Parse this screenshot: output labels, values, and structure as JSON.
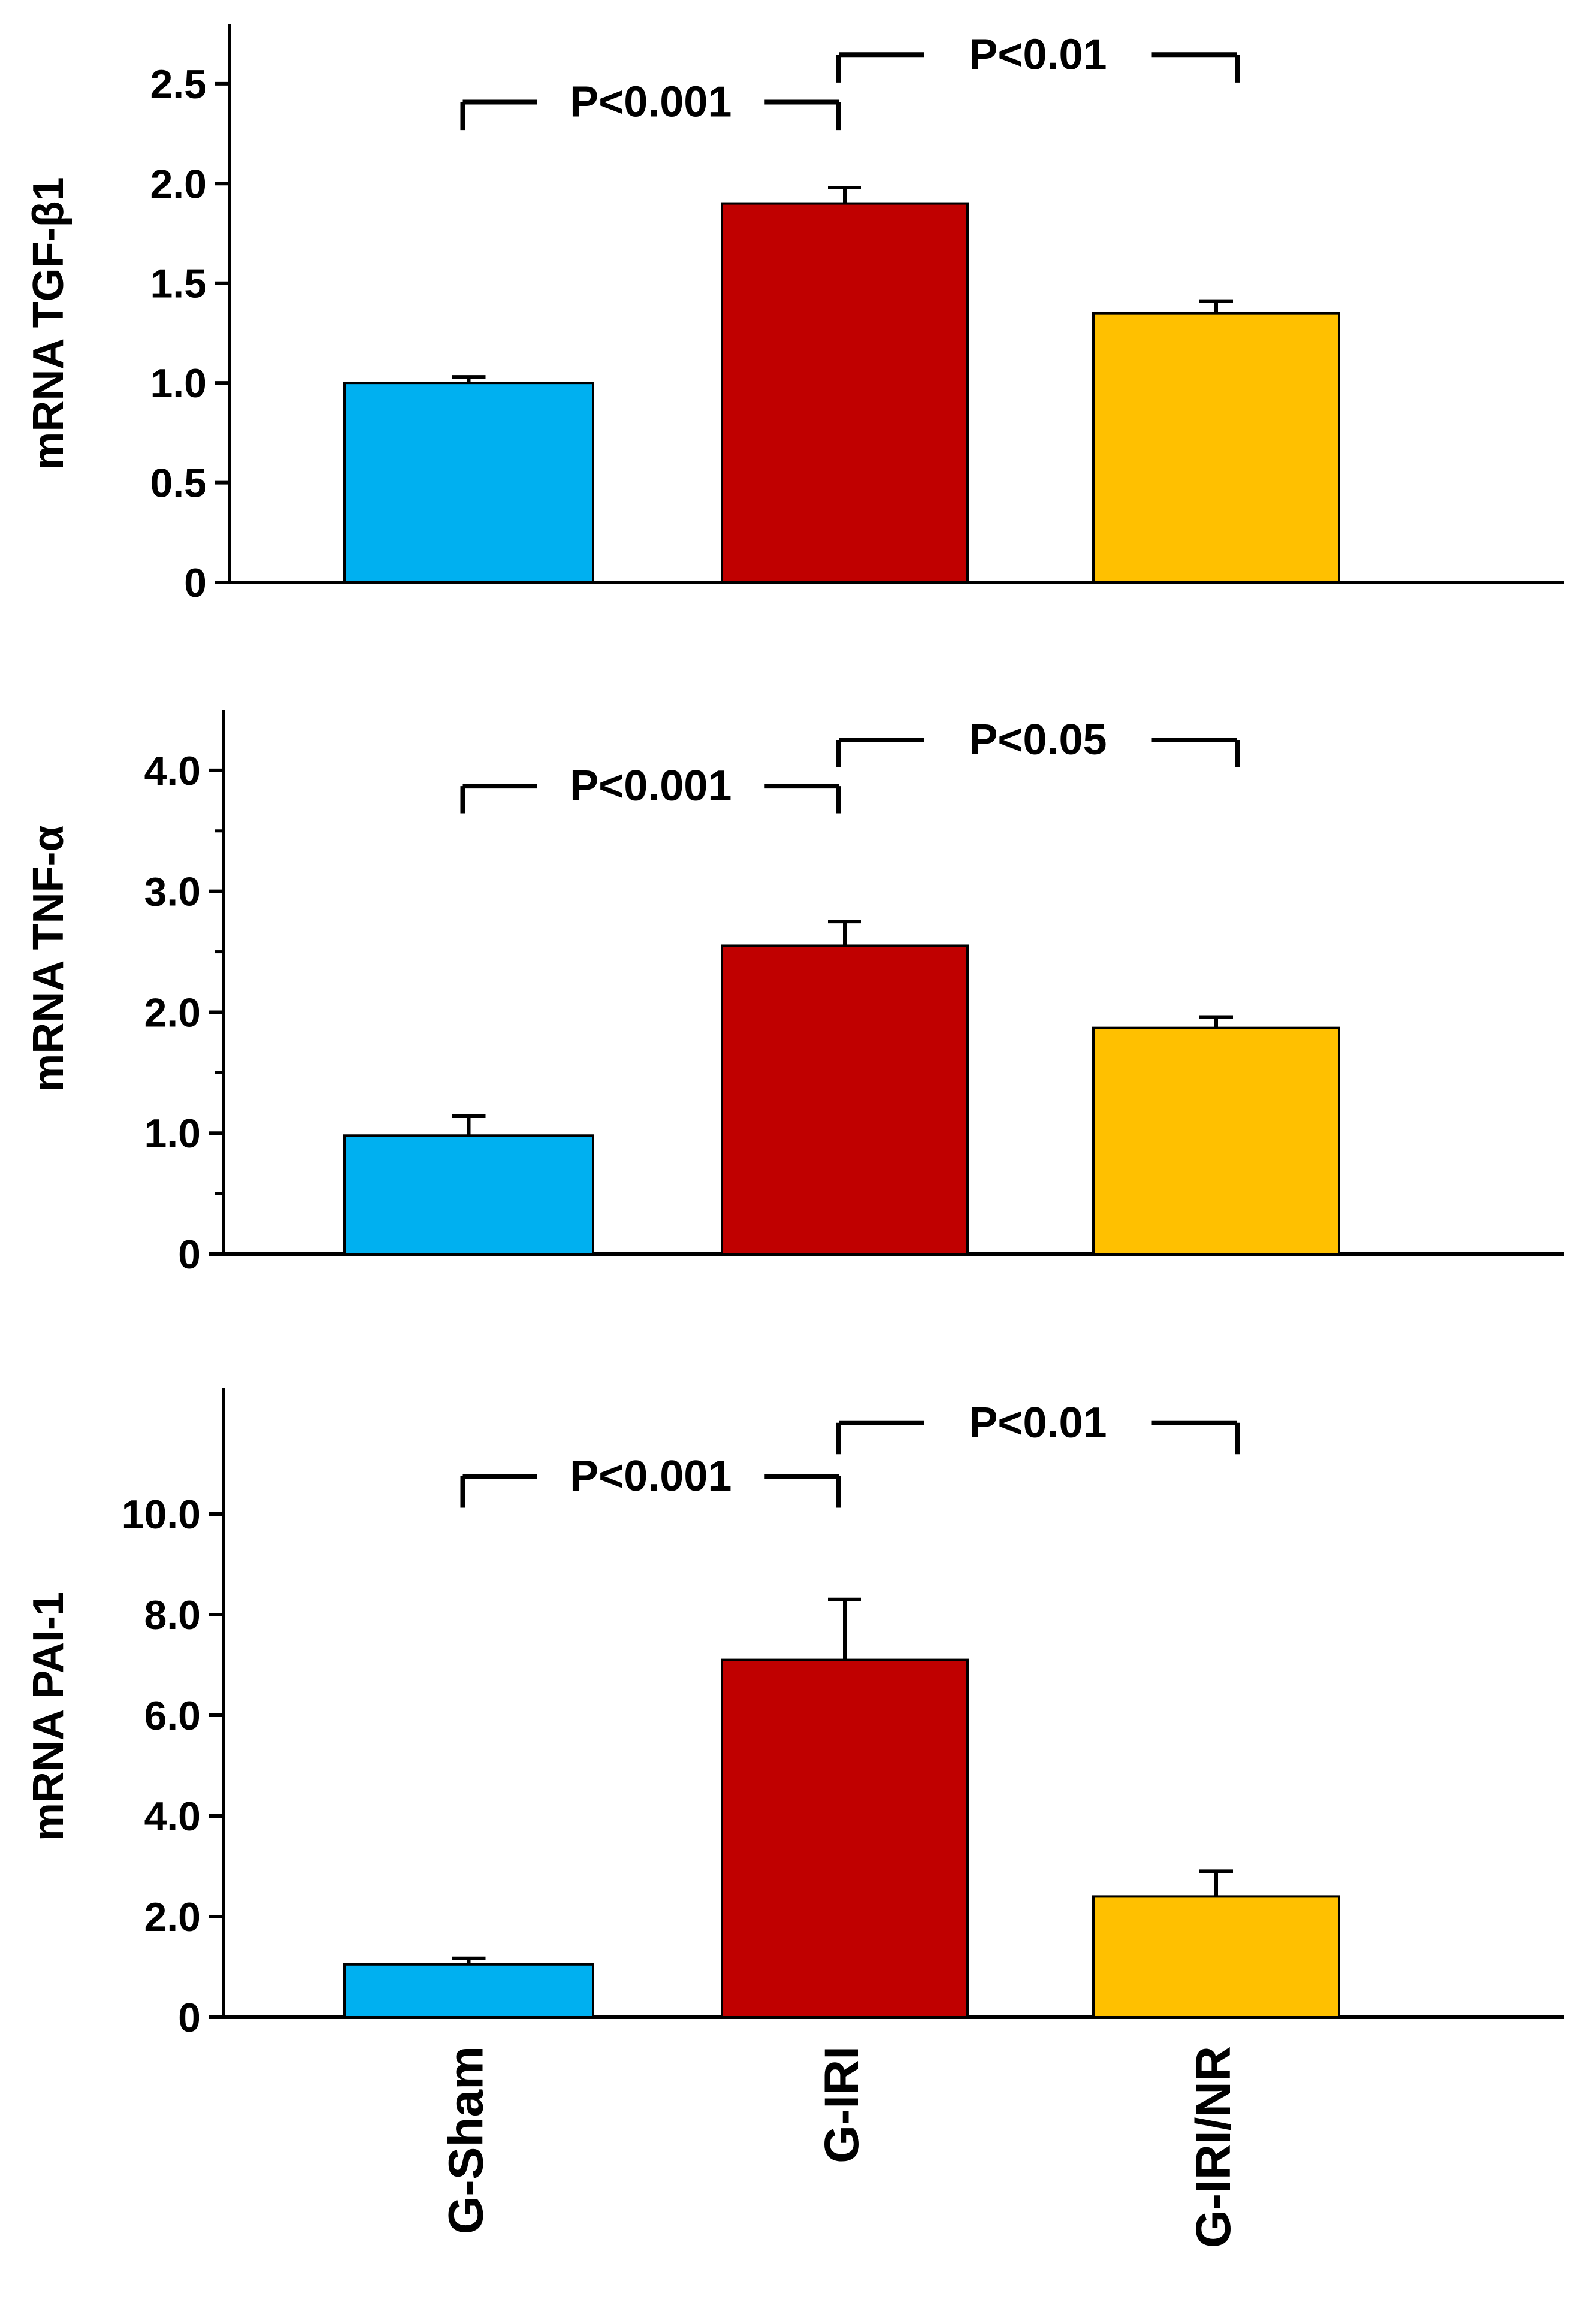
{
  "chart_data": [
    {
      "type": "bar",
      "ylabel": "mRNA TGF-β1",
      "categories": [
        "G-Sham",
        "G-IRI",
        "G-IRI/NR"
      ],
      "values": [
        1.0,
        1.9,
        1.35
      ],
      "errors": [
        0.03,
        0.08,
        0.06
      ],
      "ylim": [
        0,
        2.8
      ],
      "yticks": [
        0,
        0.5,
        1.0,
        1.5,
        2.0,
        2.5
      ],
      "ytick_labels": [
        "0",
        "0.5",
        "1.0",
        "1.5",
        "2.0",
        "2.5"
      ],
      "minor_ticks": [],
      "comparisons": [
        {
          "from": 0,
          "to": 1,
          "label": "P<0.001",
          "level": 0
        },
        {
          "from": 1,
          "to": 2,
          "label": "P<0.01",
          "level": 1
        }
      ]
    },
    {
      "type": "bar",
      "ylabel": "mRNA TNF-α",
      "categories": [
        "G-Sham",
        "G-IRI",
        "G-IRI/NR"
      ],
      "values": [
        0.98,
        2.55,
        1.87
      ],
      "errors": [
        0.16,
        0.2,
        0.09
      ],
      "ylim": [
        0,
        4.5
      ],
      "yticks": [
        0,
        1.0,
        2.0,
        3.0,
        4.0
      ],
      "ytick_labels": [
        "0",
        "1.0",
        "2.0",
        "3.0",
        "4.0"
      ],
      "minor_ticks": [
        0.5,
        1.5,
        2.5,
        3.5
      ],
      "comparisons": [
        {
          "from": 0,
          "to": 1,
          "label": "P<0.001",
          "level": 0
        },
        {
          "from": 1,
          "to": 2,
          "label": "P<0.05",
          "level": 1
        }
      ]
    },
    {
      "type": "bar",
      "ylabel": "mRNA PAI-1",
      "categories": [
        "G-Sham",
        "G-IRI",
        "G-IRI/NR"
      ],
      "values": [
        1.05,
        7.1,
        2.4
      ],
      "errors": [
        0.12,
        1.2,
        0.5
      ],
      "ylim": [
        0,
        12.5
      ],
      "yticks": [
        0,
        2.0,
        4.0,
        6.0,
        8.0,
        10.0
      ],
      "ytick_labels": [
        "0",
        "2.0",
        "4.0",
        "6.0",
        "8.0",
        "10.0"
      ],
      "minor_ticks": [],
      "comparisons": [
        {
          "from": 0,
          "to": 1,
          "label": "P<0.001",
          "level": 0
        },
        {
          "from": 1,
          "to": 2,
          "label": "P<0.01",
          "level": 1
        }
      ]
    }
  ],
  "x_categories": [
    "G-Sham",
    "G-IRI",
    "G-IRI/NR"
  ],
  "colors": {
    "G-Sham": "#00b0f0",
    "G-IRI": "#c00000",
    "G-IRI/NR": "#ffc000",
    "axis": "#000000"
  }
}
